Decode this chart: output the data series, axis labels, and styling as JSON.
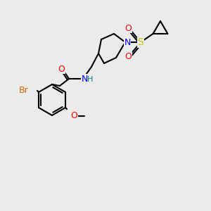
{
  "bg_color": "#ebebeb",
  "bond_color": "#000000",
  "bond_width": 1.5,
  "atom_colors": {
    "O": "#ff0000",
    "N": "#0000ff",
    "S": "#cccc00",
    "Br": "#cc6600",
    "H": "#008080",
    "C": "#000000"
  },
  "font_size_atom": 9,
  "font_size_label": 9
}
